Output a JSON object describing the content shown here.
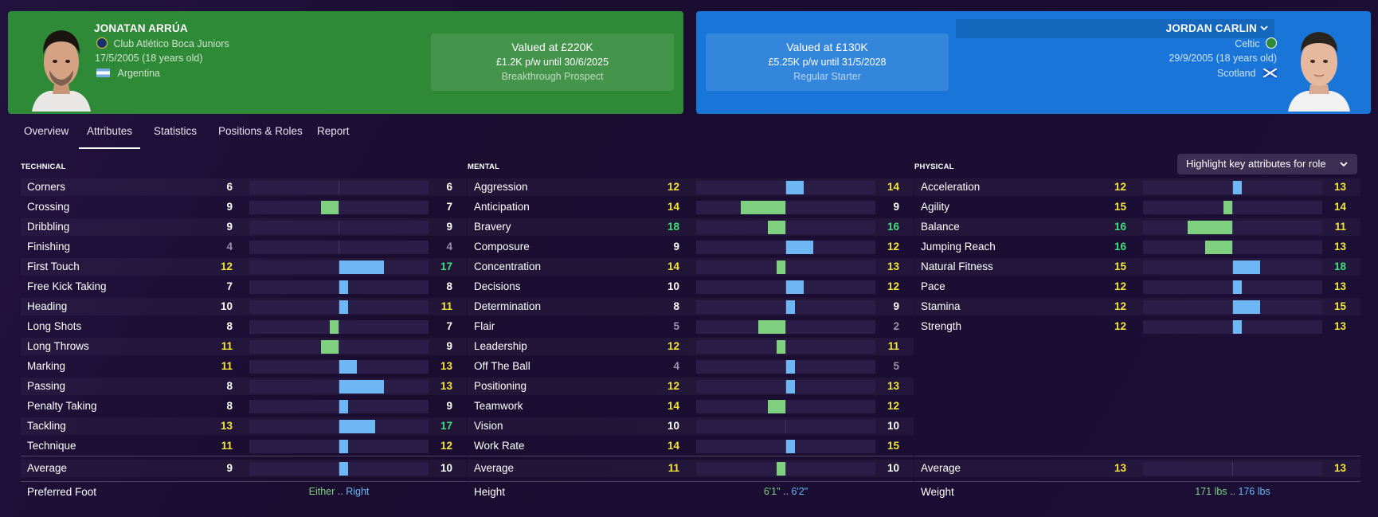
{
  "player_left": {
    "name": "JONATAN ARRÚA",
    "club": "Club Atlético Boca Juniors",
    "dob": "17/5/2005 (18 years old)",
    "nation": "Argentina",
    "value": "Valued at £220K",
    "contract": "£1.2K p/w until 30/6/2025",
    "status": "Breakthrough Prospect",
    "card_color": "#2f8a37"
  },
  "player_right": {
    "name": "JORDAN CARLIN",
    "club": "Celtic",
    "dob": "29/9/2005 (18 years old)",
    "nation": "Scotland",
    "value": "Valued at £130K",
    "contract": "£5.25K p/w until 31/5/2028",
    "status": "Regular Starter",
    "card_color": "#1976d8"
  },
  "tabs": [
    "Overview",
    "Attributes",
    "Statistics",
    "Positions & Roles",
    "Report"
  ],
  "active_tab": "Attributes",
  "highlight_button": "Highlight key attributes for role",
  "colors": {
    "left_bar": "#7fd07f",
    "right_bar": "#6db7f5",
    "value_white": "#ffffff",
    "value_yellow": "#f2e63c",
    "value_green": "#3fe07c",
    "value_grey": "#9a93a8"
  },
  "sections": [
    {
      "title": "TECHNICAL",
      "attributes": [
        {
          "name": "Corners",
          "a": 6,
          "b": 6
        },
        {
          "name": "Crossing",
          "a": 9,
          "b": 7
        },
        {
          "name": "Dribbling",
          "a": 9,
          "b": 9
        },
        {
          "name": "Finishing",
          "a": 4,
          "b": 4
        },
        {
          "name": "First Touch",
          "a": 12,
          "b": 17
        },
        {
          "name": "Free Kick Taking",
          "a": 7,
          "b": 8
        },
        {
          "name": "Heading",
          "a": 10,
          "b": 11
        },
        {
          "name": "Long Shots",
          "a": 8,
          "b": 7
        },
        {
          "name": "Long Throws",
          "a": 11,
          "b": 9
        },
        {
          "name": "Marking",
          "a": 11,
          "b": 13
        },
        {
          "name": "Passing",
          "a": 8,
          "b": 13
        },
        {
          "name": "Penalty Taking",
          "a": 8,
          "b": 9
        },
        {
          "name": "Tackling",
          "a": 13,
          "b": 17
        },
        {
          "name": "Technique",
          "a": 11,
          "b": 12
        }
      ],
      "average": {
        "name": "Average",
        "a": 9,
        "b": 10
      },
      "extra": {
        "name": "Preferred Foot",
        "a": "Either",
        "b": "Right"
      }
    },
    {
      "title": "MENTAL",
      "attributes": [
        {
          "name": "Aggression",
          "a": 12,
          "b": 14
        },
        {
          "name": "Anticipation",
          "a": 14,
          "b": 9
        },
        {
          "name": "Bravery",
          "a": 18,
          "b": 16
        },
        {
          "name": "Composure",
          "a": 9,
          "b": 12
        },
        {
          "name": "Concentration",
          "a": 14,
          "b": 13
        },
        {
          "name": "Decisions",
          "a": 10,
          "b": 12
        },
        {
          "name": "Determination",
          "a": 8,
          "b": 9
        },
        {
          "name": "Flair",
          "a": 5,
          "b": 2
        },
        {
          "name": "Leadership",
          "a": 12,
          "b": 11
        },
        {
          "name": "Off The Ball",
          "a": 4,
          "b": 5
        },
        {
          "name": "Positioning",
          "a": 12,
          "b": 13
        },
        {
          "name": "Teamwork",
          "a": 14,
          "b": 12
        },
        {
          "name": "Vision",
          "a": 10,
          "b": 10
        },
        {
          "name": "Work Rate",
          "a": 14,
          "b": 15
        }
      ],
      "average": {
        "name": "Average",
        "a": 11,
        "b": 10
      },
      "extra": {
        "name": "Height",
        "a": "6'1\"",
        "b": "6'2\""
      }
    },
    {
      "title": "PHYSICAL",
      "attributes": [
        {
          "name": "Acceleration",
          "a": 12,
          "b": 13
        },
        {
          "name": "Agility",
          "a": 15,
          "b": 14
        },
        {
          "name": "Balance",
          "a": 16,
          "b": 11
        },
        {
          "name": "Jumping Reach",
          "a": 16,
          "b": 13
        },
        {
          "name": "Natural Fitness",
          "a": 15,
          "b": 18
        },
        {
          "name": "Pace",
          "a": 12,
          "b": 13
        },
        {
          "name": "Stamina",
          "a": 12,
          "b": 15
        },
        {
          "name": "Strength",
          "a": 12,
          "b": 13
        }
      ],
      "average": {
        "name": "Average",
        "a": 13,
        "b": 13
      },
      "extra": {
        "name": "Weight",
        "a": "171 lbs",
        "b": "176 lbs"
      }
    }
  ]
}
